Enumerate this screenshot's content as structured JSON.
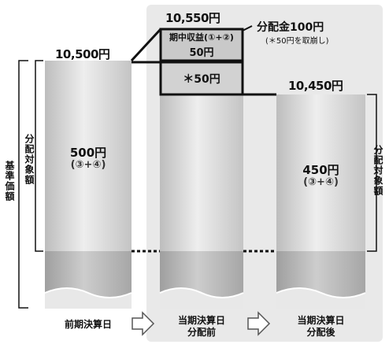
{
  "before": {
    "value": "10,500円",
    "amount": "500円",
    "formula": "(③+④)",
    "date": "前期決算日"
  },
  "pre_dist": {
    "value": "10,550円",
    "income_label": "期中収益(①+②)",
    "income_amount": "50円",
    "reserve_amount": "＊50円",
    "date_line1": "当期決算日",
    "date_line2": "分配前"
  },
  "post_dist": {
    "value": "10,450円",
    "amount": "450円",
    "formula": "(③+④)",
    "date_line1": "当期決算日",
    "date_line2": "分配後"
  },
  "distribution": {
    "title": "分配金100円",
    "note": "(＊50円を取崩し)"
  },
  "side_labels": {
    "base_price": "基準価額",
    "distributable_left": "分配対象額",
    "distributable_right": "分配対象額"
  },
  "colors": {
    "panel": "#e9e9e9",
    "column": "#d6d6d6",
    "column_base": "#b4b4b4",
    "box_fill": "#c9c9c9",
    "box_border": "#111111"
  }
}
